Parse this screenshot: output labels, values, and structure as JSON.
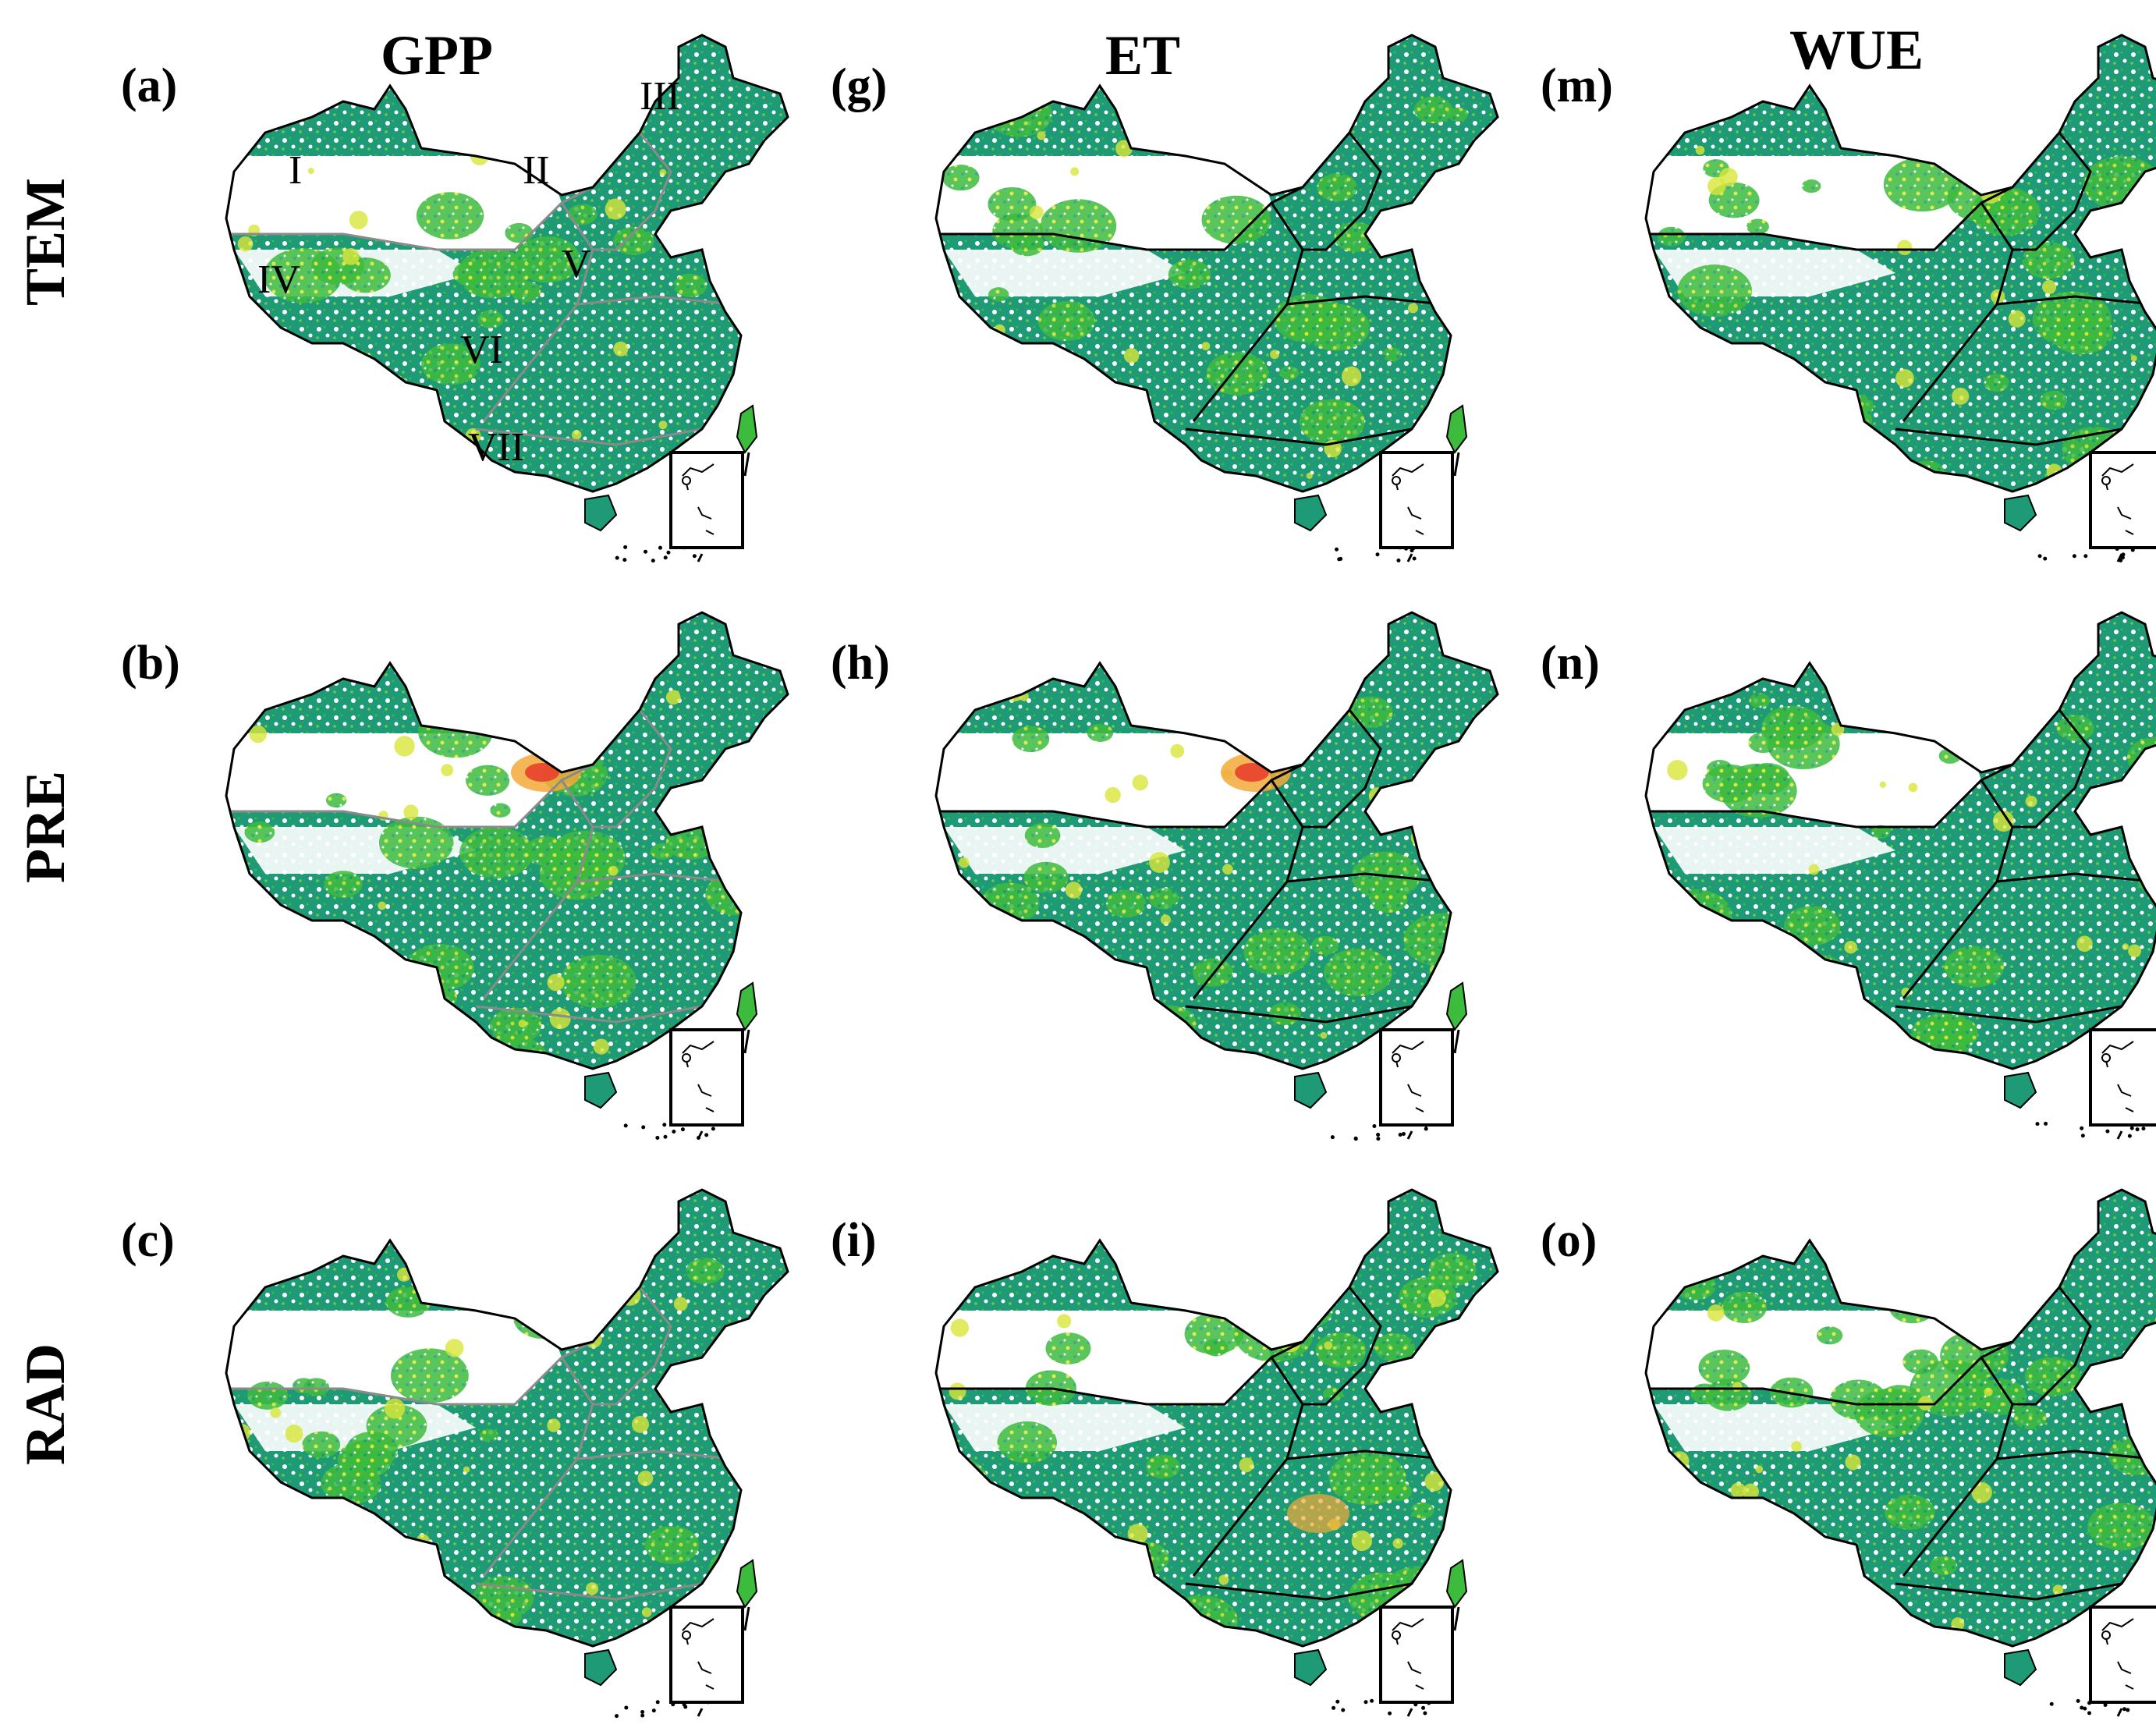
{
  "columns": [
    {
      "title": "GPP"
    },
    {
      "title": "ET"
    },
    {
      "title": "WUE"
    }
  ],
  "rows": [
    {
      "title": "TEM"
    },
    {
      "title": "PRE"
    },
    {
      "title": "RAD"
    }
  ],
  "panels": [
    {
      "label": "(a)",
      "row": 0,
      "col": 0
    },
    {
      "label": "(b)",
      "row": 1,
      "col": 0
    },
    {
      "label": "(c)",
      "row": 2,
      "col": 0
    },
    {
      "label": "(g)",
      "row": 0,
      "col": 1
    },
    {
      "label": "(h)",
      "row": 1,
      "col": 1
    },
    {
      "label": "(i)",
      "row": 2,
      "col": 1
    },
    {
      "label": "(m)",
      "row": 0,
      "col": 2
    },
    {
      "label": "(n)",
      "row": 1,
      "col": 2
    },
    {
      "label": "(o)",
      "row": 2,
      "col": 2
    }
  ],
  "region_labels": [
    "I",
    "II",
    "III",
    "IV",
    "V",
    "VI",
    "VII"
  ],
  "colors": {
    "background": "#ffffff",
    "land_low": "#1f9a77",
    "land_mid": "#3dbb3d",
    "land_high": "#d8e63a",
    "hotspot_orange": "#f2a93a",
    "hotspot_red": "#e8402a",
    "border": "#000000",
    "region_border_grey": "#8a8a8a"
  }
}
